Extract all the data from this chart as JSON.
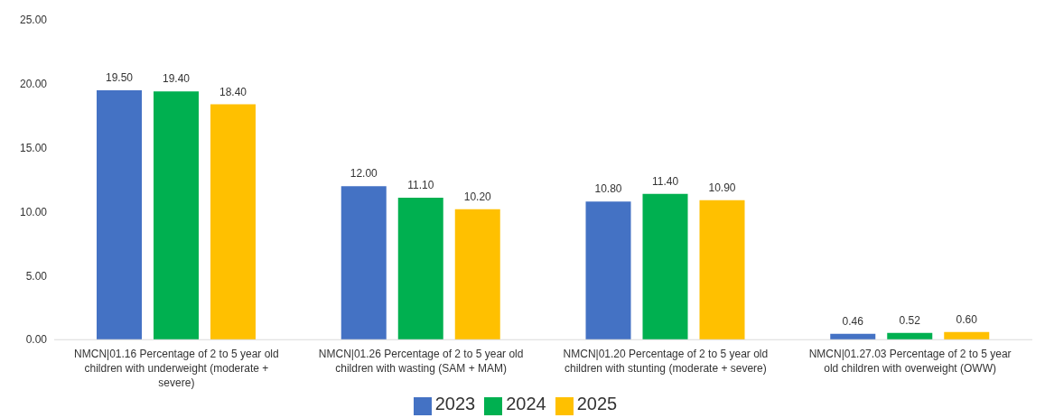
{
  "chart_data": {
    "type": "bar",
    "categories": [
      "NMCN|01.16 Percentage of 2 to 5 year old children with underweight (moderate + severe)",
      "NMCN|01.26 Percentage of 2 to 5 year old children with wasting (SAM + MAM)",
      "NMCN|01.20 Percentage of 2 to 5 year old children with stunting (moderate + severe)",
      "NMCN|01.27.03 Percentage of 2 to 5 year old children with overweight (OWW)"
    ],
    "series": [
      {
        "name": "2023",
        "color": "#4472c4",
        "values": [
          19.5,
          12.0,
          10.8,
          0.46
        ],
        "value_labels": [
          "19.50",
          "12.00",
          "10.80",
          "0.46"
        ]
      },
      {
        "name": "2024",
        "color": "#00b050",
        "values": [
          19.4,
          11.1,
          11.4,
          0.52
        ],
        "value_labels": [
          "19.40",
          "11.10",
          "11.40",
          "0.52"
        ]
      },
      {
        "name": "2025",
        "color": "#ffc000",
        "values": [
          18.4,
          10.2,
          10.9,
          0.6
        ],
        "value_labels": [
          "18.40",
          "10.20",
          "10.90",
          "0.60"
        ]
      }
    ],
    "ylim": [
      0,
      25
    ],
    "yticks": [
      {
        "value": 0,
        "label": "0.00"
      },
      {
        "value": 5,
        "label": "5.00"
      },
      {
        "value": 10,
        "label": "10.00"
      },
      {
        "value": 15,
        "label": "15.00"
      },
      {
        "value": 20,
        "label": "20.00"
      },
      {
        "value": 25,
        "label": "25.00"
      }
    ],
    "grid": false,
    "legend": "bottom"
  }
}
